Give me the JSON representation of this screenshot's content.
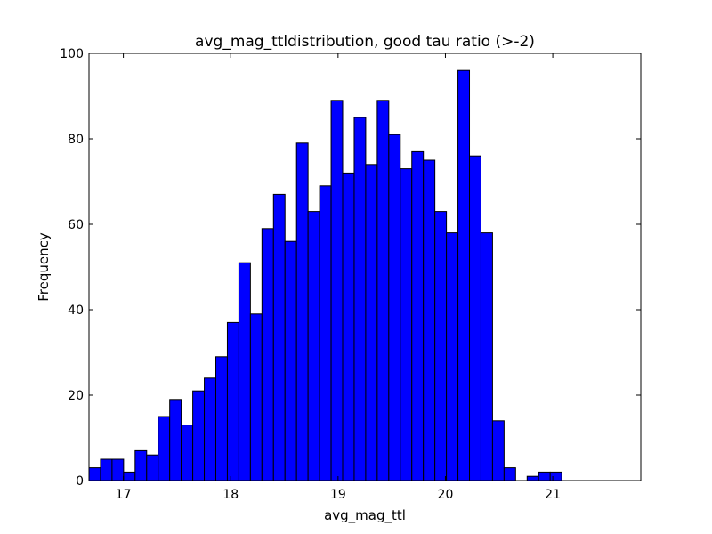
{
  "chart_data": {
    "type": "bar",
    "title": "avg_mag_ttldistribution, good tau ratio (>-2)",
    "xlabel": "avg_mag_ttl",
    "ylabel": "Frequency",
    "xlim": [
      16.68,
      21.82
    ],
    "ylim": [
      0,
      100
    ],
    "xticks": [
      17,
      18,
      19,
      20,
      21
    ],
    "yticks": [
      0,
      20,
      40,
      60,
      80,
      100
    ],
    "bin_start": 16.68,
    "bin_width": 0.1074,
    "values": [
      3,
      5,
      5,
      2,
      7,
      6,
      15,
      19,
      13,
      21,
      24,
      29,
      37,
      51,
      39,
      59,
      67,
      56,
      79,
      63,
      69,
      89,
      72,
      85,
      74,
      89,
      81,
      73,
      77,
      75,
      63,
      58,
      96,
      76,
      58,
      14,
      3,
      0,
      1,
      2,
      2
    ],
    "bar_color": "#0000ff",
    "edge_color": "#000000",
    "grid": false,
    "legend": "none"
  }
}
